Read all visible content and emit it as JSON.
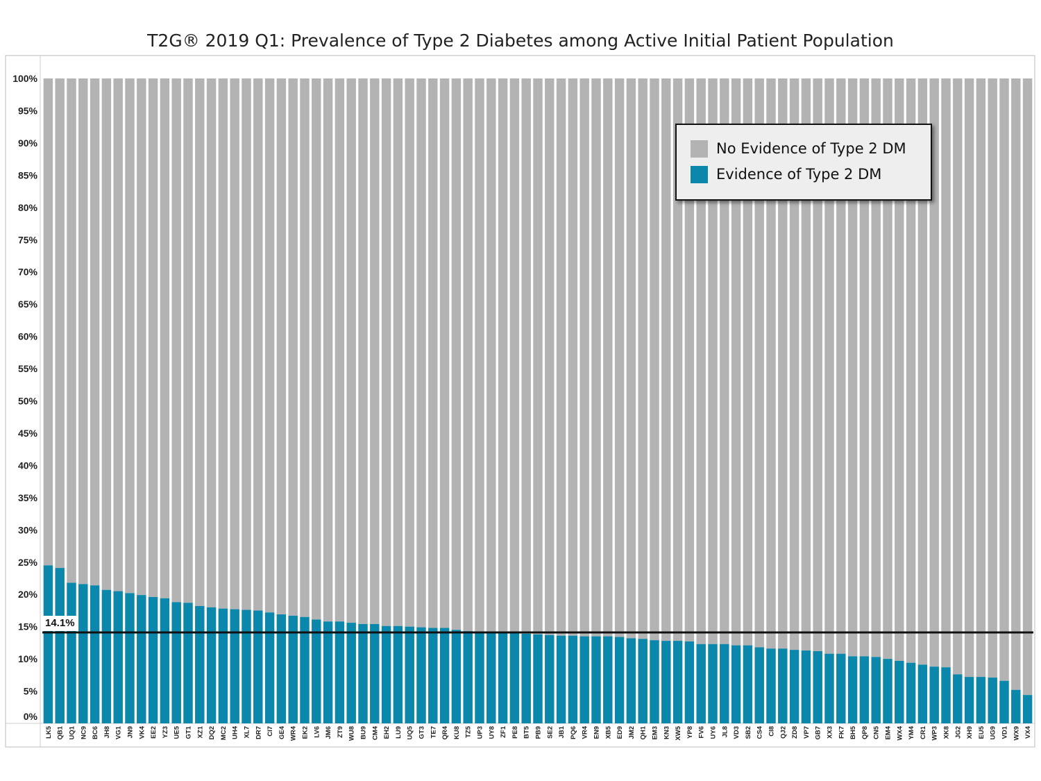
{
  "chart_data": {
    "type": "bar",
    "stacked": true,
    "title": "T2G® 2019 Q1: Prevalence of Type 2 Diabetes among Active Initial Patient Population",
    "xlabel": "",
    "ylabel": "",
    "ylim": [
      0,
      100
    ],
    "y_tick_labels": [
      "0%",
      "5%",
      "10%",
      "15%",
      "20%",
      "25%",
      "30%",
      "35%",
      "40%",
      "45%",
      "50%",
      "55%",
      "60%",
      "65%",
      "70%",
      "75%",
      "80%",
      "85%",
      "90%",
      "95%",
      "100%"
    ],
    "grid": false,
    "legend_position": "top-right",
    "categories": [
      "LK5",
      "QB1",
      "UQ1",
      "NC9",
      "BC6",
      "JH8",
      "VG1",
      "JN9",
      "VK4",
      "EE2",
      "YZ3",
      "UE5",
      "GT1",
      "XZ1",
      "DQ2",
      "MC2",
      "UH4",
      "XL7",
      "DR7",
      "CI7",
      "GE4",
      "WR4",
      "EK2",
      "LV6",
      "JM6",
      "ZT9",
      "WU8",
      "BU9",
      "CM4",
      "EH2",
      "LU9",
      "UQ5",
      "GT3",
      "TE7",
      "QR4",
      "KU8",
      "TZ5",
      "UP3",
      "UY8",
      "ZF1",
      "PE8",
      "BT5",
      "PB9",
      "SE2",
      "JB1",
      "PQ6",
      "VR4",
      "EN9",
      "XB5",
      "ED9",
      "JM2",
      "QH1",
      "EM3",
      "KN3",
      "XW5",
      "YP8",
      "FV6",
      "UY6",
      "JL8",
      "VD3",
      "SB2",
      "CS4",
      "CI8",
      "QJ2",
      "ZD8",
      "VP7",
      "GB7",
      "XX3",
      "FK7",
      "BH5",
      "QP8",
      "CN5",
      "EM4",
      "WX4",
      "YM4",
      "CR1",
      "WP3",
      "XK8",
      "JG2",
      "XH9",
      "EU5",
      "UG9",
      "VD1",
      "WX9",
      "VX4"
    ],
    "series": [
      {
        "name": "Evidence of Type 2 DM",
        "color": "#0a87ab",
        "values": [
          24.5,
          24.1,
          21.8,
          21.6,
          21.4,
          20.7,
          20.5,
          20.2,
          19.9,
          19.6,
          19.4,
          18.8,
          18.7,
          18.2,
          18.0,
          17.8,
          17.7,
          17.6,
          17.5,
          17.2,
          16.9,
          16.7,
          16.5,
          16.1,
          15.8,
          15.8,
          15.6,
          15.4,
          15.4,
          15.1,
          15.1,
          15.0,
          14.9,
          14.8,
          14.8,
          14.5,
          14.3,
          14.1,
          14.1,
          14.1,
          14.1,
          13.9,
          13.8,
          13.7,
          13.6,
          13.6,
          13.5,
          13.5,
          13.5,
          13.4,
          13.2,
          13.1,
          12.9,
          12.8,
          12.8,
          12.7,
          12.3,
          12.3,
          12.3,
          12.1,
          12.1,
          11.8,
          11.6,
          11.6,
          11.4,
          11.3,
          11.2,
          10.8,
          10.8,
          10.4,
          10.4,
          10.3,
          10.0,
          9.7,
          9.4,
          9.1,
          8.8,
          8.7,
          7.6,
          7.2,
          7.2,
          7.1,
          6.6,
          5.2,
          4.4
        ]
      },
      {
        "name": "No Evidence of Type 2 DM",
        "color": "#b3b3b3",
        "values": [
          75.5,
          75.9,
          78.2,
          78.4,
          78.6,
          79.3,
          79.5,
          79.8,
          80.1,
          80.4,
          80.6,
          81.2,
          81.3,
          81.8,
          82.0,
          82.2,
          82.3,
          82.4,
          82.5,
          82.8,
          83.1,
          83.3,
          83.5,
          83.9,
          84.2,
          84.2,
          84.4,
          84.6,
          84.6,
          84.9,
          84.9,
          85.0,
          85.1,
          85.2,
          85.2,
          85.5,
          85.7,
          85.9,
          85.9,
          85.9,
          85.9,
          86.1,
          86.2,
          86.3,
          86.4,
          86.4,
          86.5,
          86.5,
          86.5,
          86.6,
          86.8,
          86.9,
          87.1,
          87.2,
          87.2,
          87.3,
          87.7,
          87.7,
          87.7,
          87.9,
          87.9,
          88.2,
          88.4,
          88.4,
          88.6,
          88.7,
          88.8,
          89.2,
          89.2,
          89.6,
          89.6,
          89.7,
          90.0,
          90.3,
          90.6,
          90.9,
          91.2,
          91.3,
          92.4,
          92.8,
          92.8,
          92.9,
          93.4,
          94.8,
          95.6
        ]
      }
    ],
    "reference_line": {
      "value": 14.1,
      "label": "14.1%"
    }
  }
}
